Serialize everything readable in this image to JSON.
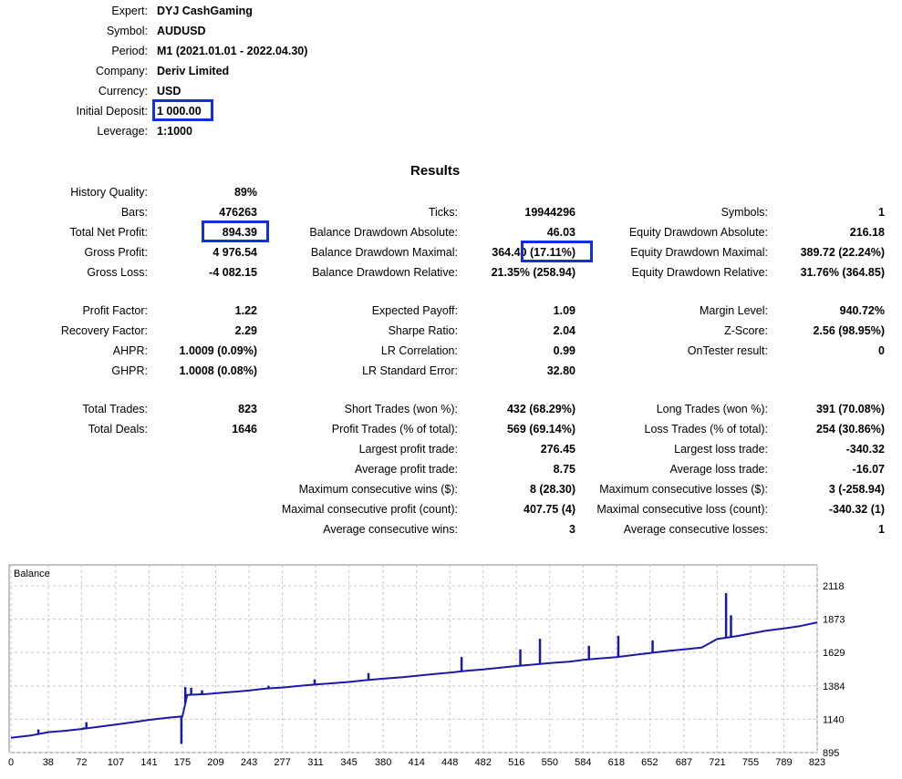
{
  "header": [
    {
      "label": "Expert:",
      "value": "DYJ CashGaming"
    },
    {
      "label": "Symbol:",
      "value": "AUDUSD"
    },
    {
      "label": "Period:",
      "value": "M1 (2021.01.01 - 2022.04.30)"
    },
    {
      "label": "Company:",
      "value": "Deriv Limited"
    },
    {
      "label": "Currency:",
      "value": "USD"
    },
    {
      "label": "Initial Deposit:",
      "value": "1 000.00"
    },
    {
      "label": "Leverage:",
      "value": "1:1000"
    }
  ],
  "results_title": "Results",
  "col1": [
    {
      "label": "History Quality:",
      "value": "89%"
    },
    {
      "label": "Bars:",
      "value": "476263"
    },
    {
      "label": "Total Net Profit:",
      "value": "894.39"
    },
    {
      "label": "Gross Profit:",
      "value": "4 976.54"
    },
    {
      "label": "Gross Loss:",
      "value": "-4 082.15"
    },
    {
      "label": "Profit Factor:",
      "value": "1.22"
    },
    {
      "label": "Recovery Factor:",
      "value": "2.29"
    },
    {
      "label": "AHPR:",
      "value": "1.0009 (0.09%)"
    },
    {
      "label": "GHPR:",
      "value": "1.0008 (0.08%)"
    },
    {
      "label": "Total Trades:",
      "value": "823"
    },
    {
      "label": "Total Deals:",
      "value": "1646"
    }
  ],
  "col2": [
    {
      "label": "Ticks:",
      "value": "19944296"
    },
    {
      "label": "Balance Drawdown Absolute:",
      "value": "46.03"
    },
    {
      "label": "Balance Drawdown Maximal:",
      "value": "364.40 (17.11%)"
    },
    {
      "label": "Balance Drawdown Relative:",
      "value": "21.35% (258.94)"
    },
    {
      "label": "Expected Payoff:",
      "value": "1.09"
    },
    {
      "label": "Sharpe Ratio:",
      "value": "2.04"
    },
    {
      "label": "LR Correlation:",
      "value": "0.99"
    },
    {
      "label": "LR Standard Error:",
      "value": "32.80"
    },
    {
      "label": "Short Trades (won %):",
      "value": "432 (68.29%)"
    },
    {
      "label": "Profit Trades (% of total):",
      "value": "569 (69.14%)"
    },
    {
      "label": "Largest profit trade:",
      "value": "276.45"
    },
    {
      "label": "Average profit trade:",
      "value": "8.75"
    },
    {
      "label": "Maximum consecutive wins ($):",
      "value": "8 (28.30)"
    },
    {
      "label": "Maximal consecutive profit (count):",
      "value": "407.75 (4)"
    },
    {
      "label": "Average consecutive wins:",
      "value": "3"
    }
  ],
  "col3": [
    {
      "label": "Symbols:",
      "value": "1"
    },
    {
      "label": "Equity Drawdown Absolute:",
      "value": "216.18"
    },
    {
      "label": "Equity Drawdown Maximal:",
      "value": "389.72 (22.24%)"
    },
    {
      "label": "Equity Drawdown Relative:",
      "value": "31.76% (364.85)"
    },
    {
      "label": "Margin Level:",
      "value": "940.72%"
    },
    {
      "label": "Z-Score:",
      "value": "2.56 (98.95%)"
    },
    {
      "label": "OnTester result:",
      "value": "0"
    },
    {
      "label": "Long Trades (won %):",
      "value": "391 (70.08%)"
    },
    {
      "label": "Loss Trades (% of total):",
      "value": "254 (30.86%)"
    },
    {
      "label": "Largest loss trade:",
      "value": "-340.32"
    },
    {
      "label": "Average loss trade:",
      "value": "-16.07"
    },
    {
      "label": "Maximum consecutive losses ($):",
      "value": "3 (-258.94)"
    },
    {
      "label": "Maximal consecutive loss (count):",
      "value": "-340.32 (1)"
    },
    {
      "label": "Average consecutive losses:",
      "value": "1"
    }
  ],
  "chart_data": {
    "type": "line",
    "title": "Balance",
    "ylim": [
      895,
      2118
    ],
    "xlim": [
      0,
      823
    ],
    "y_ticks": [
      2118,
      1873,
      1629,
      1384,
      1140,
      895
    ],
    "x_ticks": [
      0,
      38,
      72,
      107,
      141,
      175,
      209,
      243,
      277,
      311,
      345,
      380,
      414,
      448,
      482,
      516,
      550,
      584,
      618,
      652,
      687,
      721,
      755,
      789,
      823
    ],
    "grid": true,
    "line_color": "#1a1aa8",
    "series": [
      {
        "x": [
          0,
          20,
          38,
          55,
          72,
          90,
          107,
          125,
          141,
          160,
          175,
          180,
          200,
          209,
          230,
          243,
          260,
          277,
          295,
          311,
          330,
          345,
          360,
          380,
          400,
          414,
          430,
          448,
          465,
          482,
          500,
          516,
          535,
          550,
          570,
          584,
          600,
          618,
          635,
          652,
          670,
          687,
          705,
          721,
          740,
          755,
          770,
          789,
          805,
          823
        ],
        "y": [
          1003,
          1020,
          1045,
          1055,
          1068,
          1085,
          1100,
          1118,
          1135,
          1150,
          1160,
          1318,
          1325,
          1330,
          1342,
          1350,
          1365,
          1372,
          1385,
          1395,
          1405,
          1413,
          1425,
          1437,
          1448,
          1458,
          1470,
          1482,
          1495,
          1505,
          1518,
          1530,
          1542,
          1552,
          1562,
          1575,
          1585,
          1595,
          1610,
          1625,
          1640,
          1652,
          1665,
          1728,
          1748,
          1768,
          1788,
          1805,
          1822,
          1850
        ]
      }
    ],
    "spikes": [
      {
        "x": 28,
        "y": 1065
      },
      {
        "x": 74,
        "y": 1080
      },
      {
        "x": 77,
        "y": 1118
      },
      {
        "x": 174,
        "y": 958
      },
      {
        "x": 178,
        "y": 1375
      },
      {
        "x": 184,
        "y": 1370
      },
      {
        "x": 195,
        "y": 1352
      },
      {
        "x": 263,
        "y": 1385
      },
      {
        "x": 310,
        "y": 1432
      },
      {
        "x": 365,
        "y": 1478
      },
      {
        "x": 460,
        "y": 1596
      },
      {
        "x": 520,
        "y": 1652
      },
      {
        "x": 540,
        "y": 1730
      },
      {
        "x": 590,
        "y": 1678
      },
      {
        "x": 620,
        "y": 1752
      },
      {
        "x": 655,
        "y": 1718
      },
      {
        "x": 730,
        "y": 2065
      },
      {
        "x": 735,
        "y": 1902
      }
    ]
  }
}
